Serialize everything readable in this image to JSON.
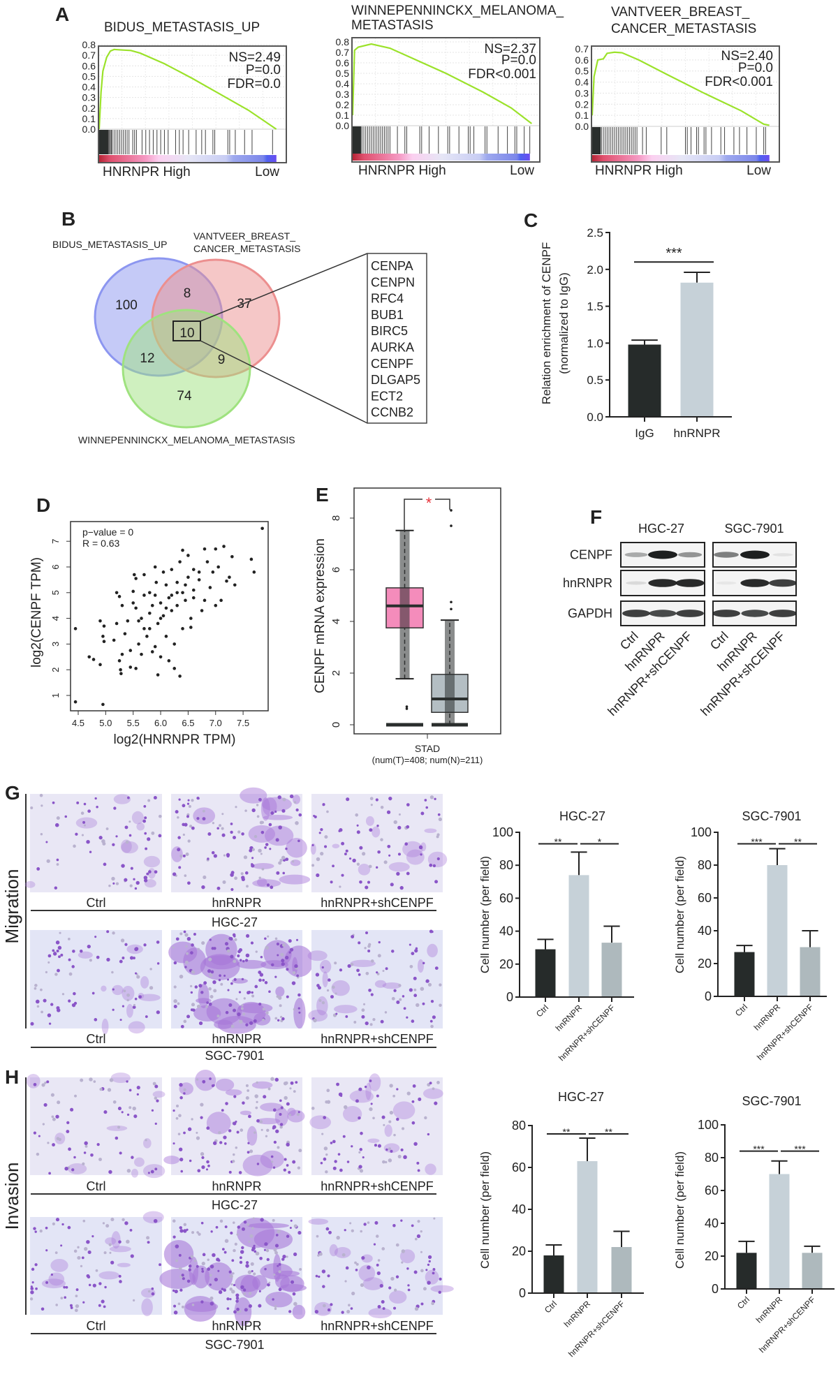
{
  "panels": {
    "A": "A",
    "B": "B",
    "C": "C",
    "D": "D",
    "E": "E",
    "F": "F",
    "G": "G",
    "H": "H"
  },
  "chart_data": [
    {
      "type": "line",
      "title_lines": [
        "BIDUS_METASTASIS_UP"
      ],
      "ylim": [
        0,
        0.8
      ],
      "y_ticks": [
        "0.0",
        "0.1",
        "0.2",
        "0.3",
        "0.4",
        "0.5",
        "0.6",
        "0.7",
        "0.8"
      ],
      "stats": [
        "NS=2.49",
        "P=0.0",
        "FDR=0.0"
      ],
      "x_label_high": "HNRNPR High",
      "x_label_low": "Low",
      "line_color": "#9be22a",
      "series": [
        {
          "x": [
            0,
            1,
            2,
            4,
            6,
            8,
            12,
            17,
            22,
            35,
            50,
            65,
            80,
            95
          ],
          "y": [
            0,
            0.35,
            0.55,
            0.68,
            0.74,
            0.755,
            0.75,
            0.745,
            0.72,
            0.62,
            0.48,
            0.33,
            0.18,
            0.0
          ]
        }
      ],
      "hits": [
        0,
        0.5,
        1,
        1.5,
        2,
        2.5,
        3,
        3.5,
        4,
        4.5,
        5,
        5.5,
        6,
        6.5,
        7,
        8,
        9,
        10,
        11,
        12,
        13,
        14,
        15,
        16,
        18,
        19,
        20,
        23,
        25,
        27,
        29,
        31,
        33,
        35,
        37,
        41,
        43,
        45,
        48,
        52,
        55,
        57,
        61,
        62,
        69,
        70,
        73,
        78,
        82,
        93
      ]
    },
    {
      "type": "line",
      "title_lines": [
        "WINNEPENNINCKX_MELANOMA_",
        "METASTASIS"
      ],
      "ylim": [
        0,
        0.8
      ],
      "y_ticks": [
        "0.0",
        "0.1",
        "0.2",
        "0.3",
        "0.4",
        "0.5",
        "0.6",
        "0.7",
        "0.8"
      ],
      "stats": [
        "NS=2.37",
        "P=0.0",
        "FDR<0.001"
      ],
      "x_label_high": "HNRNPR High",
      "x_label_low": "Low",
      "line_color": "#9be22a",
      "series": [
        {
          "x": [
            0,
            1,
            3,
            10,
            20,
            30,
            50,
            70,
            85,
            96
          ],
          "y": [
            0.1,
            0.72,
            0.75,
            0.78,
            0.74,
            0.66,
            0.5,
            0.32,
            0.17,
            0.02
          ]
        }
      ],
      "hits": [
        0,
        0.5,
        1,
        1.5,
        2,
        2.5,
        3,
        4,
        5,
        6,
        7,
        8,
        9,
        10,
        11,
        12,
        13,
        14,
        15,
        16,
        17,
        18,
        19,
        20,
        24,
        28,
        29,
        36,
        37,
        41,
        46,
        51,
        52,
        57,
        62,
        63,
        65,
        71,
        72,
        78,
        83,
        87,
        88,
        92,
        95
      ]
    },
    {
      "type": "line",
      "title_lines": [
        "VANTVEER_BREAST_",
        "CANCER_METASTASIS"
      ],
      "ylim": [
        0,
        0.7
      ],
      "y_ticks": [
        "0.0",
        "0.1",
        "0.2",
        "0.3",
        "0.4",
        "0.5",
        "0.6",
        "0.7"
      ],
      "stats": [
        "NS=2.40",
        "P=0.0",
        "FDR<0.001"
      ],
      "x_label_high": "HNRNPR High",
      "x_label_low": "Low",
      "line_color": "#9be22a",
      "series": [
        {
          "x": [
            0,
            1,
            3,
            6,
            8,
            12,
            16,
            25,
            40,
            60,
            80,
            92,
            95
          ],
          "y": [
            0.1,
            0.45,
            0.6,
            0.61,
            0.66,
            0.67,
            0.665,
            0.6,
            0.47,
            0.3,
            0.14,
            0.02,
            0.01
          ]
        }
      ],
      "hits": [
        0,
        0.5,
        1,
        1.5,
        2,
        2.5,
        3,
        4,
        5,
        6,
        7,
        8,
        9,
        10,
        11,
        12,
        13,
        14,
        15,
        16,
        17,
        18,
        19,
        20,
        21,
        22,
        23,
        24,
        27,
        29,
        37,
        40,
        50,
        51,
        53,
        56,
        57,
        60,
        61,
        64,
        69,
        71,
        76,
        79,
        83,
        88,
        92,
        93
      ]
    },
    {
      "type": "bar",
      "categories": [
        "IgG",
        "hnRNPR"
      ],
      "values": [
        0.98,
        1.82
      ],
      "errors": [
        0.06,
        0.14
      ],
      "ylabel_lines": [
        "Relation enrichment of CENPF",
        "(normalized to IgG)"
      ],
      "ylim": [
        0,
        2.5
      ],
      "y_ticks": [
        "0.0",
        "0.5",
        "1.0",
        "1.5",
        "2.0",
        "2.5"
      ],
      "colors": [
        "#262b2a",
        "#c6d1d8"
      ],
      "significance": [
        {
          "from": 0,
          "to": 1,
          "level": 2.1,
          "label": "***"
        }
      ]
    },
    {
      "type": "scatter",
      "xlabel": "log2(HNRNPR TPM)",
      "ylabel": "log2(CENPF TPM)",
      "xlim": [
        4.4,
        7.9
      ],
      "ylim": [
        0.5,
        7.8
      ],
      "x_ticks": [
        "4.5",
        "5.0",
        "5.5",
        "6.0",
        "6.5",
        "7.0",
        "7.5"
      ],
      "y_ticks": [
        "1",
        "2",
        "3",
        "4",
        "5",
        "6",
        "7"
      ],
      "annotations": [
        "p−value = 0",
        "R = 0.63"
      ],
      "points": [
        [
          4.45,
          3.6
        ],
        [
          4.45,
          0.75
        ],
        [
          4.95,
          0.65
        ],
        [
          7.85,
          7.5
        ],
        [
          7.65,
          6.3
        ],
        [
          7.7,
          5.8
        ],
        [
          4.7,
          2.5
        ],
        [
          4.78,
          2.4
        ],
        [
          4.9,
          2.2
        ],
        [
          4.9,
          3.9
        ],
        [
          4.97,
          3.7
        ],
        [
          4.95,
          3.3
        ],
        [
          4.97,
          3.1
        ],
        [
          5.15,
          3.15
        ],
        [
          5.2,
          3.8
        ],
        [
          5.2,
          5.0
        ],
        [
          5.25,
          4.85
        ],
        [
          5.25,
          2.35
        ],
        [
          5.27,
          2.0
        ],
        [
          5.28,
          1.85
        ],
        [
          5.3,
          4.5
        ],
        [
          5.3,
          2.6
        ],
        [
          5.35,
          3.4
        ],
        [
          5.4,
          3.9
        ],
        [
          5.45,
          2.1
        ],
        [
          5.45,
          2.75
        ],
        [
          5.5,
          4.6
        ],
        [
          5.5,
          5.05
        ],
        [
          5.52,
          5.7
        ],
        [
          5.55,
          5.55
        ],
        [
          5.55,
          4.4
        ],
        [
          5.55,
          2.05
        ],
        [
          5.6,
          3.0
        ],
        [
          5.6,
          3.9
        ],
        [
          5.65,
          2.6
        ],
        [
          5.65,
          4.0
        ],
        [
          5.7,
          5.7
        ],
        [
          5.7,
          4.9
        ],
        [
          5.75,
          3.3
        ],
        [
          5.8,
          4.2
        ],
        [
          5.8,
          3.6
        ],
        [
          5.85,
          2.7
        ],
        [
          5.85,
          4.5
        ],
        [
          5.9,
          6.0
        ],
        [
          5.9,
          2.9
        ],
        [
          5.92,
          5.4
        ],
        [
          5.95,
          1.8
        ],
        [
          5.95,
          3.8
        ],
        [
          6.0,
          4.6
        ],
        [
          6.0,
          2.5
        ],
        [
          6.05,
          5.8
        ],
        [
          6.05,
          4.1
        ],
        [
          6.1,
          3.3
        ],
        [
          6.1,
          5.3
        ],
        [
          6.15,
          4.8
        ],
        [
          6.15,
          2.35
        ],
        [
          6.2,
          4.3
        ],
        [
          6.2,
          5.9
        ],
        [
          6.25,
          2.05
        ],
        [
          6.25,
          3.0
        ],
        [
          6.3,
          5.0
        ],
        [
          6.3,
          4.5
        ],
        [
          6.35,
          1.75
        ],
        [
          6.35,
          6.2
        ],
        [
          6.4,
          6.65
        ],
        [
          6.4,
          3.6
        ],
        [
          6.45,
          5.3
        ],
        [
          6.45,
          4.7
        ],
        [
          6.5,
          6.45
        ],
        [
          6.5,
          5.6
        ],
        [
          6.55,
          4.0
        ],
        [
          6.55,
          3.65
        ],
        [
          6.6,
          5.1
        ],
        [
          6.6,
          5.9
        ],
        [
          6.7,
          5.5
        ],
        [
          6.75,
          4.3
        ],
        [
          6.8,
          6.7
        ],
        [
          6.8,
          4.7
        ],
        [
          6.85,
          6.2
        ],
        [
          6.9,
          5.2
        ],
        [
          6.95,
          5.8
        ],
        [
          7.0,
          6.7
        ],
        [
          7.0,
          4.5
        ],
        [
          7.05,
          6.0
        ],
        [
          7.1,
          4.7
        ],
        [
          7.15,
          6.8
        ],
        [
          7.2,
          5.45
        ],
        [
          7.3,
          6.4
        ],
        [
          7.35,
          5.3
        ],
        [
          7.25,
          5.6
        ],
        [
          6.0,
          4.0
        ],
        [
          5.8,
          5.0
        ],
        [
          6.2,
          4.9
        ],
        [
          6.4,
          5.0
        ],
        [
          6.1,
          4.4
        ],
        [
          6.3,
          5.4
        ],
        [
          5.7,
          3.6
        ],
        [
          5.9,
          4.9
        ],
        [
          6.6,
          4.8
        ],
        [
          6.7,
          5.8
        ]
      ]
    },
    {
      "type": "box",
      "ylabel": "CENPF mRNA expression",
      "ylim": [
        0,
        8.8
      ],
      "y_ticks": [
        "0",
        "2",
        "4",
        "6",
        "8"
      ],
      "category": "STAD",
      "category_note": "(num(T)=408; num(N)=211)",
      "groups": [
        {
          "q1": 3.75,
          "median": 4.6,
          "q3": 5.3,
          "whisker_low": 1.78,
          "whisker_high": 7.52,
          "outliers": [
            0.7,
            0.62,
            0
          ],
          "color": "#f48cbb"
        },
        {
          "q1": 0.48,
          "median": 1.0,
          "q3": 1.95,
          "whisker_low": 0,
          "whisker_high": 4.05,
          "outliers": [
            8.3,
            7.7,
            4.75,
            4.48
          ],
          "color": "#b4bec3"
        }
      ],
      "significance": {
        "label": "*",
        "color": "#e8333a"
      }
    },
    {
      "type": "bar",
      "title": "HGC-27",
      "categories": [
        "Ctrl",
        "hnRNPR",
        "hnRNPR+shCENPF"
      ],
      "values": [
        29,
        74,
        33
      ],
      "errors": [
        6,
        14,
        10
      ],
      "ylabel": "Cell number (per field)",
      "ylim": [
        0,
        100
      ],
      "y_ticks": [
        "0",
        "20",
        "40",
        "60",
        "80",
        "100"
      ],
      "colors": [
        "#262b2a",
        "#c6d1d8",
        "#aeb9bd"
      ],
      "significance": [
        {
          "from": 0,
          "to": 1,
          "level": 93,
          "label": "**"
        },
        {
          "from": 1,
          "to": 2,
          "level": 93,
          "label": "*"
        }
      ]
    },
    {
      "type": "bar",
      "title": "SGC-7901",
      "categories": [
        "Ctrl",
        "hnRNPR",
        "hnRNPR+shCENPF"
      ],
      "values": [
        27,
        80,
        30
      ],
      "errors": [
        4,
        10,
        10
      ],
      "ylabel": "Cell number (per field)",
      "ylim": [
        0,
        100
      ],
      "y_ticks": [
        "0",
        "20",
        "40",
        "60",
        "80",
        "100"
      ],
      "colors": [
        "#262b2a",
        "#c6d1d8",
        "#aeb9bd"
      ],
      "significance": [
        {
          "from": 0,
          "to": 1,
          "level": 93,
          "label": "***"
        },
        {
          "from": 1,
          "to": 2,
          "level": 93,
          "label": "**"
        }
      ]
    },
    {
      "type": "bar",
      "title": "HGC-27",
      "categories": [
        "Ctrl",
        "hnRNPR",
        "hnRNPR+shCENPF"
      ],
      "values": [
        18,
        63,
        22
      ],
      "errors": [
        5,
        11,
        7.5
      ],
      "ylabel": "Cell number (per field)",
      "ylim": [
        0,
        80
      ],
      "y_ticks": [
        "0",
        "20",
        "40",
        "60",
        "80"
      ],
      "colors": [
        "#262b2a",
        "#c6d1d8",
        "#aeb9bd"
      ],
      "significance": [
        {
          "from": 0,
          "to": 1,
          "level": 76,
          "label": "**"
        },
        {
          "from": 1,
          "to": 2,
          "level": 76,
          "label": "**"
        }
      ]
    },
    {
      "type": "bar",
      "title": "SGC-7901",
      "categories": [
        "Ctrl",
        "hnRNPR",
        "hnRNPR+shCENPF"
      ],
      "values": [
        22,
        70,
        22
      ],
      "errors": [
        7,
        8,
        4
      ],
      "ylabel": "Cell number (per field)",
      "ylim": [
        0,
        100
      ],
      "y_ticks": [
        "0",
        "20",
        "40",
        "60",
        "80",
        "100"
      ],
      "colors": [
        "#262b2a",
        "#c6d1d8",
        "#aeb9bd"
      ],
      "significance": [
        {
          "from": 0,
          "to": 1,
          "level": 84,
          "label": "***"
        },
        {
          "from": 1,
          "to": 2,
          "level": 84,
          "label": "***"
        }
      ]
    }
  ],
  "venn": {
    "sets": [
      {
        "name": "BIDUS_METASTASIS_UP",
        "name_lines": [
          "BIDUS_METASTASIS_UP"
        ],
        "color": "#8c96f0"
      },
      {
        "name": "VANTVEER_BREAST_CANCER_METASTASIS",
        "name_lines": [
          "VANTVEER_BREAST_",
          "CANCER_METASTASIS"
        ],
        "color": "#ec8f8f"
      },
      {
        "name": "WINNEPENNINCKX_MELANOMA_METASTASIS",
        "name_lines": [
          "WINNEPENNINCKX_MELANOMA_METASTASIS"
        ],
        "color": "#9fe27f"
      }
    ],
    "regions": {
      "only_bidus": "100",
      "bidus_vantveer": "8",
      "only_vantveer": "37",
      "all_three": "10",
      "bidus_winne": "12",
      "vantveer_winne": "9",
      "only_winne": "74"
    },
    "shared_genes": [
      "CENPA",
      "CENPN",
      "RFC4",
      "BUB1",
      "BIRC5",
      "AURKA",
      "CENPF",
      "DLGAP5",
      "ECT2",
      "CCNB2"
    ]
  },
  "western_blot": {
    "cell_lines": [
      "HGC-27",
      "SGC-7901"
    ],
    "proteins": [
      "CENPF",
      "hnRNPR",
      "GAPDH"
    ],
    "lanes": [
      "Ctrl",
      "hnRNPR",
      "hnRNPR+shCENPF"
    ],
    "band_intensity": {
      "HGC-27": {
        "CENPF": [
          0.35,
          1.0,
          0.45
        ],
        "hnRNPR": [
          0.12,
          0.95,
          0.95
        ],
        "GAPDH": [
          0.85,
          0.8,
          0.85
        ]
      },
      "SGC-7901": {
        "CENPF": [
          0.55,
          1.0,
          0.08
        ],
        "hnRNPR": [
          0.06,
          0.95,
          0.85
        ],
        "GAPDH": [
          0.85,
          0.8,
          0.85
        ]
      }
    }
  },
  "transwell": {
    "conditions": [
      "Ctrl",
      "hnRNPR",
      "hnRNPR+shCENPF"
    ],
    "cell_lines": [
      "HGC-27",
      "SGC-7901"
    ],
    "migration_label": "Migration",
    "invasion_label": "Invasion"
  }
}
